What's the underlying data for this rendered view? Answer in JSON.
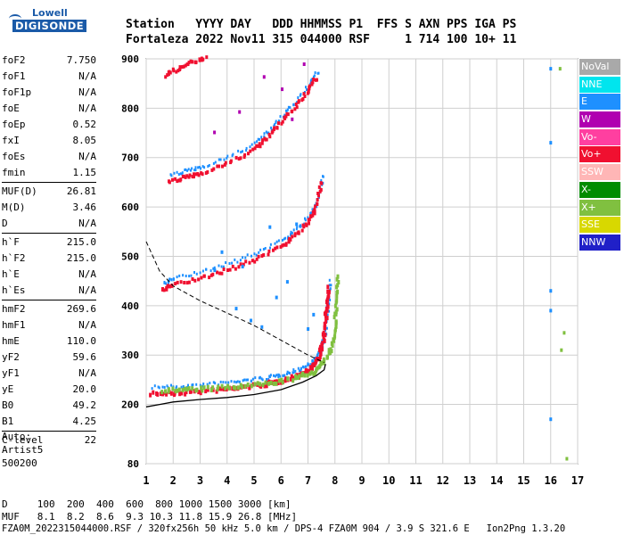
{
  "logo": {
    "line1": "Lowell",
    "line2": "DIGISONDE"
  },
  "header": {
    "row1": "Station   YYYY DAY   DDD HHMMSS P1  FFS S AXN PPS IGA PS",
    "row2": "Fortaleza 2022 Nov11 315 044000 RSF     1 714 100 10+ 11"
  },
  "params": [
    [
      {
        "k": "foF2",
        "v": "7.750"
      },
      {
        "k": "foF1",
        "v": "N/A"
      },
      {
        "k": "foF1p",
        "v": "N/A"
      },
      {
        "k": "foE",
        "v": "N/A"
      },
      {
        "k": "foEp",
        "v": "0.52"
      },
      {
        "k": "fxI",
        "v": "8.05"
      },
      {
        "k": "foEs",
        "v": "N/A"
      },
      {
        "k": "fmin",
        "v": "1.15"
      }
    ],
    [
      {
        "k": "MUF(D)",
        "v": "26.81"
      },
      {
        "k": "M(D)",
        "v": "3.46"
      },
      {
        "k": "D",
        "v": "N/A"
      }
    ],
    [
      {
        "k": "h`F",
        "v": "215.0"
      },
      {
        "k": "h`F2",
        "v": "215.0"
      },
      {
        "k": "h`E",
        "v": "N/A"
      },
      {
        "k": "h`Es",
        "v": "N/A"
      }
    ],
    [
      {
        "k": "hmF2",
        "v": "269.6"
      },
      {
        "k": "hmF1",
        "v": "N/A"
      },
      {
        "k": "hmE",
        "v": "110.0"
      },
      {
        "k": "yF2",
        "v": "59.6"
      },
      {
        "k": "yF1",
        "v": "N/A"
      },
      {
        "k": "yE",
        "v": "20.0"
      },
      {
        "k": "B0",
        "v": "49.2"
      },
      {
        "k": "B1",
        "v": "4.25"
      }
    ],
    [
      {
        "k": "C-level",
        "v": "22"
      }
    ]
  ],
  "auto": {
    "line1": "Auto:",
    "line2": "Artist5",
    "line3": "500200"
  },
  "legend": [
    {
      "label": "NoVal",
      "color": "#a9a9a9"
    },
    {
      "label": "NNE",
      "color": "#00e5ee"
    },
    {
      "label": "E",
      "color": "#1e90ff"
    },
    {
      "label": "W",
      "color": "#b000b0"
    },
    {
      "label": "Vo-",
      "color": "#ff3fa0"
    },
    {
      "label": "Vo+",
      "color": "#f01030"
    },
    {
      "label": "SSW",
      "color": "#ffb6b6"
    },
    {
      "label": "X-",
      "color": "#008c00"
    },
    {
      "label": "X+",
      "color": "#80c040"
    },
    {
      "label": "SSE",
      "color": "#d8d800"
    },
    {
      "label": "NNW",
      "color": "#2020c8"
    }
  ],
  "footer": {
    "d_row": "D     100  200  400  600  800 1000 1500 3000 [km]",
    "muf_row": "MUF   8.1  8.2  8.6  9.3 10.3 11.8 15.9 26.8 [MHz]",
    "info": "FZA0M_2022315044000.RSF / 320fx256h 50 kHz 5.0 km / DPS-4 FZA0M 904 / 3.9 S 321.6 E   Ion2Png 1.3.20"
  },
  "chart_data": {
    "type": "scatter",
    "xlim": [
      1,
      17
    ],
    "ylim": [
      80,
      900
    ],
    "x_ticks": [
      1,
      2,
      3,
      4,
      5,
      6,
      7,
      8,
      9,
      10,
      11,
      12,
      13,
      14,
      15,
      16,
      17
    ],
    "y_ticks": [
      80,
      200,
      300,
      400,
      500,
      600,
      700,
      800,
      900
    ],
    "grid": true,
    "legend_position": "right",
    "series": [
      {
        "role": "O-trace",
        "color": "#f01030",
        "points": [
          [
            1.2,
            222
          ],
          [
            2.0,
            222
          ],
          [
            3.0,
            226
          ],
          [
            4.0,
            231
          ],
          [
            4.8,
            236
          ],
          [
            5.5,
            241
          ],
          [
            6.0,
            247
          ],
          [
            6.5,
            255
          ],
          [
            6.9,
            265
          ],
          [
            7.2,
            278
          ],
          [
            7.4,
            295
          ],
          [
            7.55,
            320
          ],
          [
            7.65,
            360
          ],
          [
            7.7,
            400
          ],
          [
            7.75,
            435
          ]
        ]
      },
      {
        "role": "X-trace",
        "color": "#80c040",
        "points": [
          [
            1.6,
            228
          ],
          [
            2.5,
            230
          ],
          [
            3.5,
            232
          ],
          [
            4.5,
            236
          ],
          [
            5.5,
            242
          ],
          [
            6.5,
            252
          ],
          [
            7.2,
            265
          ],
          [
            7.6,
            285
          ],
          [
            7.85,
            310
          ],
          [
            8.0,
            350
          ],
          [
            8.05,
            400
          ],
          [
            8.1,
            460
          ]
        ]
      },
      {
        "role": "second-hop",
        "color": "#f01030",
        "points": [
          [
            1.6,
            430
          ],
          [
            2.0,
            442
          ],
          [
            3.0,
            455
          ],
          [
            4.0,
            472
          ],
          [
            5.0,
            492
          ],
          [
            6.0,
            520
          ],
          [
            6.5,
            540
          ],
          [
            7.0,
            568
          ],
          [
            7.3,
            600
          ],
          [
            7.5,
            650
          ]
        ]
      },
      {
        "role": "third-hop",
        "color": "#f01030",
        "points": [
          [
            1.85,
            650
          ],
          [
            2.5,
            660
          ],
          [
            3.0,
            668
          ],
          [
            4.0,
            688
          ],
          [
            5.0,
            715
          ],
          [
            5.5,
            740
          ],
          [
            6.0,
            770
          ],
          [
            6.5,
            800
          ],
          [
            7.0,
            835
          ],
          [
            7.3,
            860
          ]
        ]
      },
      {
        "role": "top-band",
        "color": "#f01030",
        "points": [
          [
            1.7,
            865
          ],
          [
            2.2,
            880
          ],
          [
            2.7,
            893
          ],
          [
            3.2,
            900
          ]
        ]
      },
      {
        "role": "oblique",
        "color": "#1e90ff",
        "points": [
          [
            3.5,
            470
          ],
          [
            3.8,
            505
          ],
          [
            4.3,
            395
          ],
          [
            4.6,
            480
          ],
          [
            4.9,
            370
          ],
          [
            5.3,
            360
          ],
          [
            5.8,
            420
          ],
          [
            6.2,
            445
          ],
          [
            6.6,
            565
          ],
          [
            7.0,
            350
          ],
          [
            7.2,
            380
          ],
          [
            5.6,
            560
          ]
        ]
      },
      {
        "role": "F-region-scatter",
        "color": "#b000b0",
        "points": [
          [
            3.5,
            750
          ],
          [
            4.5,
            790
          ],
          [
            5.4,
            860
          ],
          [
            6.0,
            840
          ],
          [
            6.4,
            780
          ],
          [
            6.9,
            890
          ]
        ]
      },
      {
        "role": "profile",
        "color": "#000000",
        "points": [
          [
            1.0,
            195
          ],
          [
            1.5,
            200
          ],
          [
            2.0,
            205
          ],
          [
            3.0,
            210
          ],
          [
            4.0,
            214
          ],
          [
            5.0,
            220
          ],
          [
            6.0,
            230
          ],
          [
            6.8,
            245
          ],
          [
            7.3,
            258
          ],
          [
            7.6,
            270
          ],
          [
            7.65,
            282
          ]
        ]
      },
      {
        "role": "profile-extension",
        "color": "#000000",
        "points": [
          [
            1.0,
            530
          ],
          [
            1.5,
            470
          ],
          [
            2.0,
            440
          ],
          [
            3.0,
            410
          ],
          [
            4.0,
            385
          ],
          [
            5.0,
            360
          ],
          [
            6.0,
            330
          ],
          [
            7.0,
            300
          ],
          [
            7.6,
            285
          ]
        ]
      },
      {
        "role": "sidebar-16",
        "color": "#1e90ff",
        "points": [
          [
            16.0,
            880
          ],
          [
            16.0,
            730
          ],
          [
            16.0,
            430
          ],
          [
            16.0,
            390
          ],
          [
            16.0,
            170
          ]
        ]
      },
      {
        "role": "sidebar-16.5",
        "color": "#80c040",
        "points": [
          [
            16.35,
            880
          ],
          [
            16.4,
            310
          ],
          [
            16.5,
            345
          ],
          [
            16.6,
            90
          ]
        ]
      }
    ]
  }
}
